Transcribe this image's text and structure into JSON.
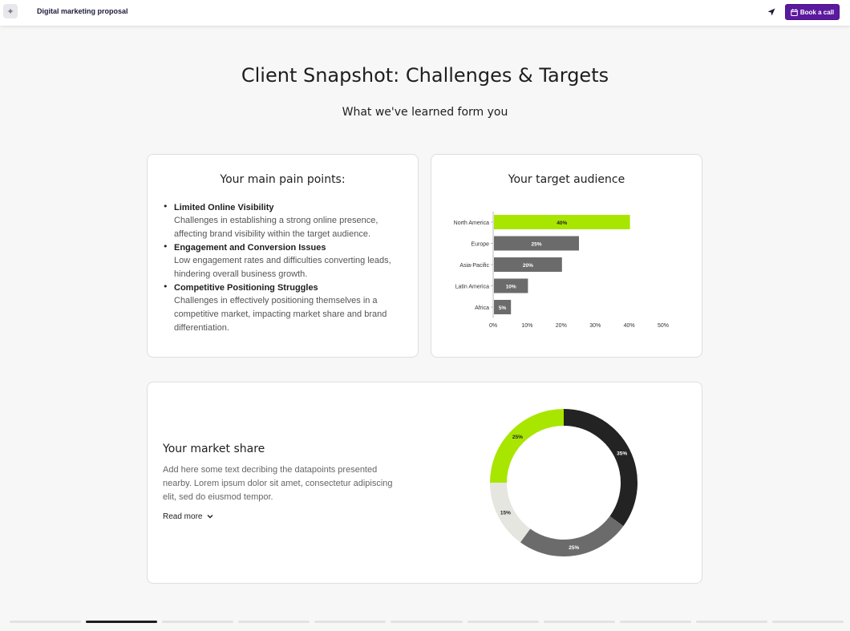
{
  "header": {
    "doc_title": "Digital marketing proposal",
    "book_label": "Book a call",
    "accent": "#5b1a9e"
  },
  "page": {
    "title": "Client Snapshot: Challenges & Targets",
    "subtitle": "What we've learned form you"
  },
  "pain_points": {
    "title": "Your main pain points:",
    "items": [
      {
        "heading": "Limited Online Visibility",
        "text": "Challenges in establishing a strong online presence, affecting brand visibility within the target audience."
      },
      {
        "heading": "Engagement and Conversion Issues",
        "text": "Low engagement rates and difficulties converting leads, hindering overall business growth."
      },
      {
        "heading": "Competitive Positioning Struggles",
        "text": "Challenges in effectively positioning themselves in a competitive market, impacting market share and brand differentiation."
      }
    ]
  },
  "audience": {
    "title": "Your target audience"
  },
  "market_share": {
    "title": "Your market share",
    "description": "Add here some text decribing the datapoints presented nearby. Lorem ipsum dolor sit amet, consectetur adipiscing elit, sed do eiusmod tempor.",
    "read_more": "Read more"
  },
  "progress": {
    "total": 11,
    "active_index": 1
  },
  "chart_data": [
    {
      "type": "bar",
      "orientation": "horizontal",
      "title": "Your target audience",
      "categories": [
        "North America",
        "Europe",
        "Asia-Pacific",
        "Latin America",
        "Africa"
      ],
      "values": [
        40,
        25,
        20,
        10,
        5
      ],
      "value_labels": [
        "40%",
        "25%",
        "20%",
        "10%",
        "5%"
      ],
      "x_ticks": [
        "0%",
        "10%",
        "20%",
        "30%",
        "40%",
        "50%"
      ],
      "xlim": [
        0,
        50
      ],
      "grid": false,
      "colors": [
        "#a8e600",
        "#6b6b6b",
        "#6b6b6b",
        "#6b6b6b",
        "#6b6b6b"
      ]
    },
    {
      "type": "pie",
      "variant": "donut",
      "title": "Your market share",
      "slices": [
        {
          "value": 35,
          "label": "35%",
          "color": "#222322"
        },
        {
          "value": 25,
          "label": "25%",
          "color": "#6b6b6b"
        },
        {
          "value": 15,
          "label": "15%",
          "color": "#e6e6e0"
        },
        {
          "value": 25,
          "label": "25%",
          "color": "#a8e600"
        }
      ]
    }
  ]
}
